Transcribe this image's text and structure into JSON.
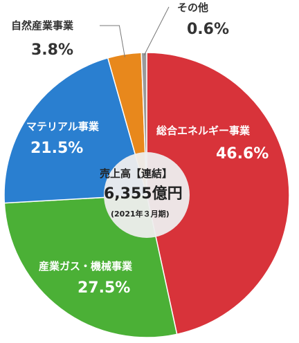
{
  "chart_data": {
    "type": "pie",
    "title": "売上高【連結】",
    "total": "6,355億円",
    "period": "(2021年３月期)",
    "slices": [
      {
        "label": "総合エネルギー事業",
        "value": 46.6,
        "display": "46.6%",
        "color": "#d8333a"
      },
      {
        "label": "産業ガス・機械事業",
        "value": 27.5,
        "display": "27.5%",
        "color": "#4bb036"
      },
      {
        "label": "マテリアル事業",
        "value": 21.5,
        "display": "21.5%",
        "color": "#2a7fd0"
      },
      {
        "label": "自然産業事業",
        "value": 3.8,
        "display": "3.8%",
        "color": "#e8881c"
      },
      {
        "label": "その他",
        "value": 0.6,
        "display": "0.6%",
        "color": "#9a9a9a"
      }
    ]
  }
}
